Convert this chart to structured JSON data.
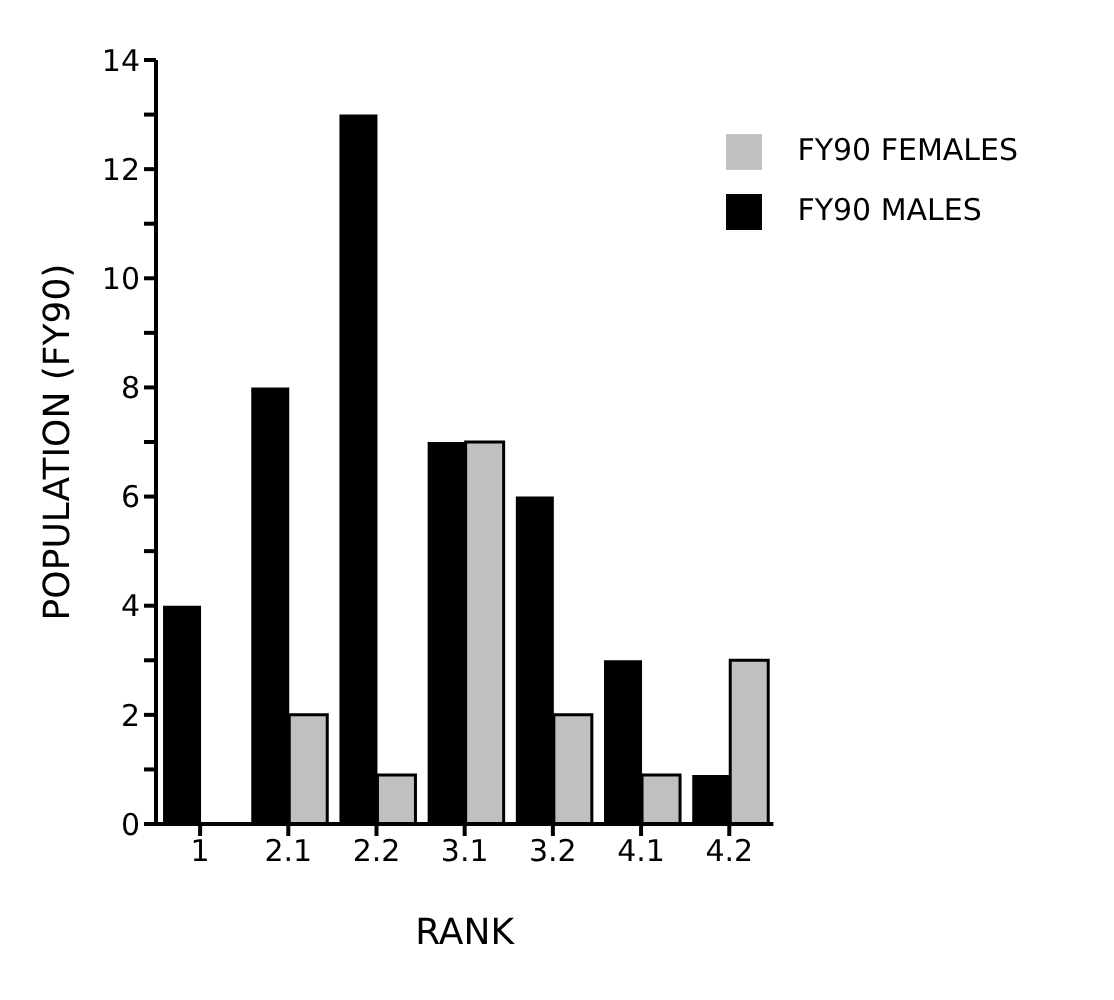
{
  "chart_data": {
    "type": "bar",
    "xlabel": "RANK",
    "ylabel": "POPULATION (FY90)",
    "categories": [
      "1",
      "2.1",
      "2.2",
      "3.1",
      "3.2",
      "4.1",
      "4.2"
    ],
    "series": [
      {
        "name": "FY90 MALES",
        "color": "#000000",
        "values": [
          4,
          8,
          13,
          7,
          6,
          3,
          0.9
        ]
      },
      {
        "name": "FY90 FEMALES",
        "color": "#c0c0c0",
        "values": [
          0,
          2,
          0.9,
          7,
          2,
          0.9,
          3
        ]
      }
    ],
    "ylim": [
      0,
      14
    ],
    "yticks": [
      0,
      {
        "value": 1,
        "label": null
      },
      2,
      {
        "value": 3,
        "label": null
      },
      4,
      {
        "value": 5,
        "label": null
      },
      6,
      {
        "value": 7,
        "label": null
      },
      8,
      {
        "value": 9,
        "label": null
      },
      10,
      {
        "value": 11,
        "label": null
      },
      12,
      {
        "value": 13,
        "label": null
      },
      14
    ],
    "legend": "top right",
    "grid": false
  }
}
